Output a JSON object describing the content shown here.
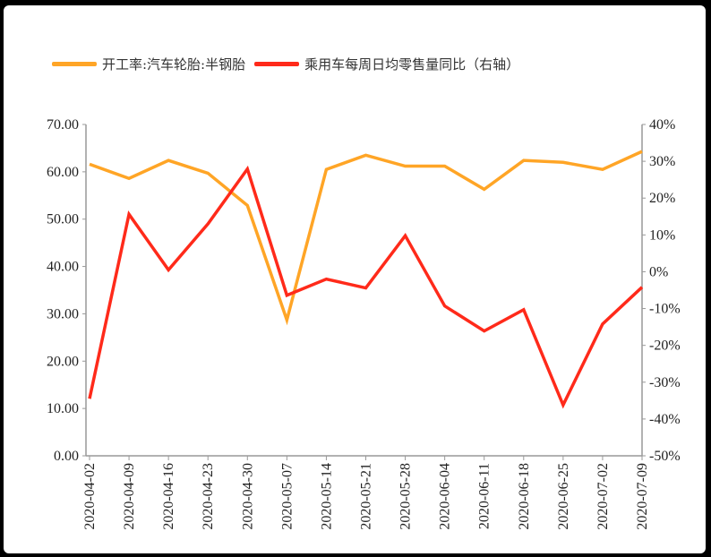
{
  "chart_data": {
    "type": "line",
    "x": [
      "2020-04-02",
      "2020-04-09",
      "2020-04-16",
      "2020-04-23",
      "2020-04-30",
      "2020-05-07",
      "2020-05-14",
      "2020-05-21",
      "2020-05-28",
      "2020-06-04",
      "2020-06-11",
      "2020-06-18",
      "2020-06-25",
      "2020-07-02",
      "2020-07-09"
    ],
    "series": [
      {
        "name": "开工率:汽车轮胎:半钢胎",
        "axis": "left",
        "color": "#FFA526",
        "values": [
          61.6,
          58.6,
          62.4,
          59.7,
          52.9,
          28.7,
          60.5,
          63.5,
          61.2,
          61.2,
          56.3,
          62.4,
          62.0,
          60.5,
          64.3
        ]
      },
      {
        "name": "乘用车每周日均零售量同比（右轴）",
        "axis": "right",
        "color": "#FF2A1A",
        "values": [
          -34.5,
          15.6,
          0.5,
          13.0,
          27.9,
          -6.4,
          -2.0,
          -4.4,
          9.8,
          -9.3,
          -16.1,
          -10.3,
          -36.2,
          -14.2,
          -4.2
        ]
      }
    ],
    "left_axis": {
      "ylim": [
        0,
        70
      ],
      "ticks": [
        "0.00",
        "10.00",
        "20.00",
        "30.00",
        "40.00",
        "50.00",
        "60.00",
        "70.00"
      ]
    },
    "right_axis": {
      "ylim": [
        -50,
        40
      ],
      "unit": "%",
      "ticks": [
        "-50%",
        "-40%",
        "-30%",
        "-20%",
        "-10%",
        "0%",
        "10%",
        "20%",
        "30%",
        "40%"
      ]
    },
    "grid": false,
    "legend": "top"
  }
}
